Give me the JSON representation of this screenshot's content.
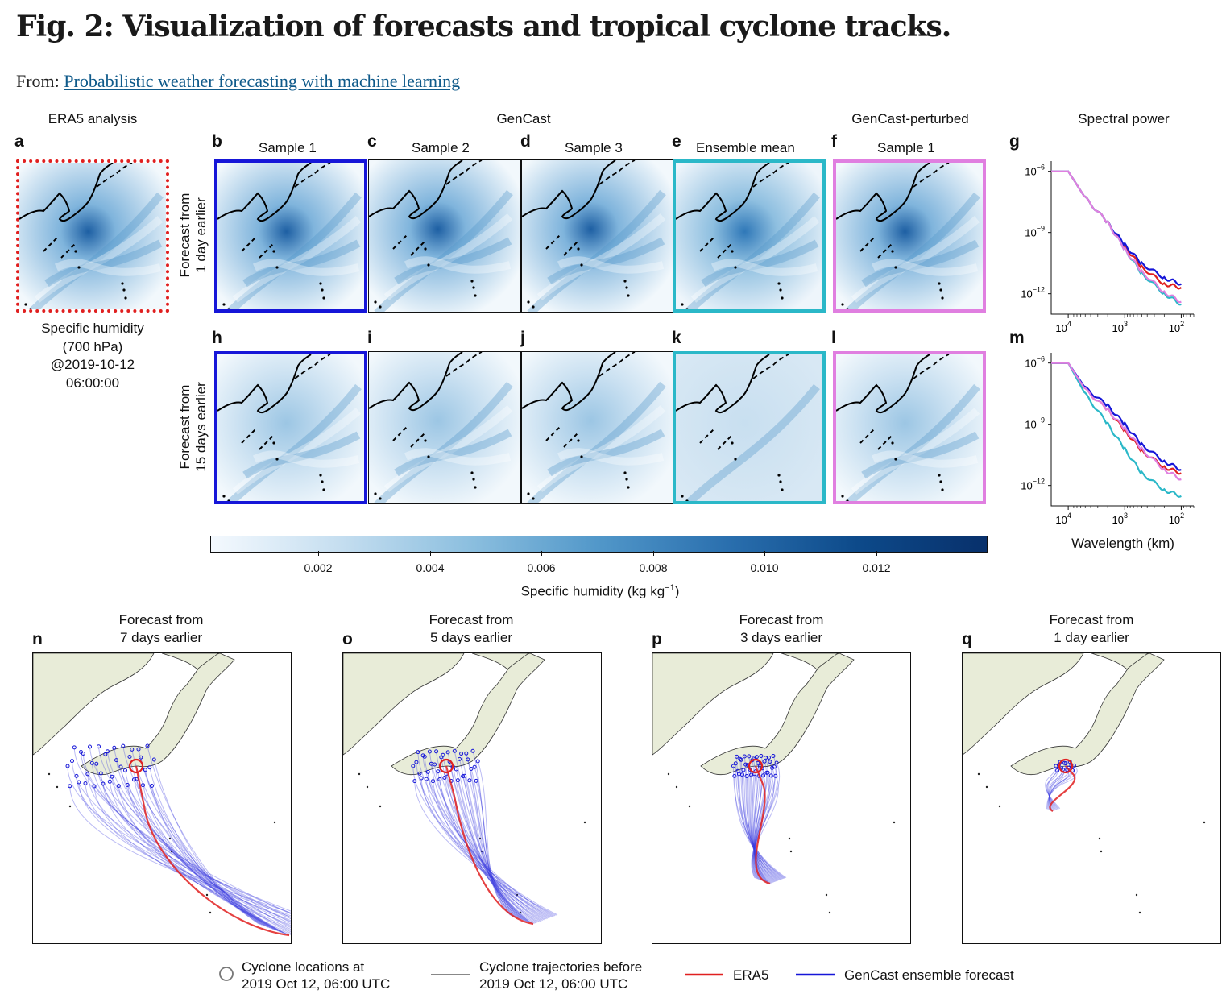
{
  "figure": {
    "title": "Fig. 2: Visualization of forecasts and tropical cyclone tracks.",
    "from_prefix": "From:",
    "from_link": "Probabilistic weather forecasting with machine learning"
  },
  "headers": {
    "era5": "ERA5 analysis",
    "gencast": "GenCast",
    "perturbed": "GenCast-perturbed",
    "spectral": "Spectral power"
  },
  "panel_letters": [
    "a",
    "b",
    "c",
    "d",
    "e",
    "f",
    "g",
    "h",
    "i",
    "j",
    "k",
    "l",
    "m",
    "n",
    "o",
    "p",
    "q"
  ],
  "panel_titles": {
    "b": "Sample 1",
    "c": "Sample 2",
    "d": "Sample 3",
    "e": "Ensemble mean",
    "f": "Sample 1"
  },
  "row_labels": {
    "row1_line1": "Forecast from",
    "row1_line2": "1 day earlier",
    "row2_line1": "Forecast from",
    "row2_line2": "15 days earlier"
  },
  "era5_caption": [
    "Specific humidity",
    "(700 hPa)",
    "@2019-10-12",
    "06:00:00"
  ],
  "colorbar": {
    "ticks": [
      "0.002",
      "0.004",
      "0.006",
      "0.008",
      "0.010",
      "0.012"
    ],
    "label_main": "Specific humidity (kg kg",
    "label_sup": "−1",
    "label_end": ")",
    "colors": [
      "#f4f9fe",
      "#08306b"
    ]
  },
  "spectral": {
    "ytick_base": "10",
    "yticks_exp": [
      "−6",
      "−9",
      "−12"
    ],
    "xtick_base": "10",
    "xticks_exp": [
      "4",
      "3",
      "2"
    ],
    "xlabel": "Wavelength (km)"
  },
  "chart_data": [
    {
      "type": "line",
      "panel": "g",
      "xlabel": "",
      "x_scale": "log (reversed)",
      "y_scale": "log",
      "x": [
        20000,
        10000,
        5000,
        2000,
        1000,
        500,
        200,
        100
      ],
      "series": [
        {
          "color": "#e02020",
          "values": [
            1e-06,
            1e-06,
            5e-08,
            3e-09,
            2e-10,
            2e-11,
            3e-12,
            2e-12
          ]
        },
        {
          "color": "#1616d8",
          "values": [
            1e-06,
            1e-06,
            5e-08,
            3e-09,
            2.5e-10,
            3e-11,
            6e-12,
            3e-12
          ]
        },
        {
          "color": "#2bb8c8",
          "values": [
            1e-06,
            1e-06,
            5e-08,
            3e-09,
            1.5e-10,
            1e-11,
            1e-12,
            3e-13
          ]
        },
        {
          "color": "#e07fe0",
          "values": [
            1e-06,
            1e-06,
            5e-08,
            3e-09,
            1.5e-10,
            1.2e-11,
            1.2e-12,
            4e-13
          ]
        }
      ]
    },
    {
      "type": "line",
      "panel": "m",
      "xlabel": "Wavelength (km)",
      "x_scale": "log (reversed)",
      "y_scale": "log",
      "x": [
        20000,
        10000,
        5000,
        2000,
        1000,
        500,
        200,
        100
      ],
      "series": [
        {
          "color": "#e02020",
          "values": [
            1e-06,
            1e-06,
            5e-08,
            5e-09,
            5e-10,
            5e-11,
            8e-12,
            4e-12
          ]
        },
        {
          "color": "#1616d8",
          "values": [
            1e-06,
            1e-06,
            6e-08,
            8e-09,
            1e-09,
            1e-10,
            1.5e-11,
            6e-12
          ]
        },
        {
          "color": "#2bb8c8",
          "values": [
            1e-06,
            1e-06,
            3e-08,
            1e-09,
            6e-11,
            4e-12,
            6e-13,
            3e-13
          ]
        },
        {
          "color": "#e07fe0",
          "values": [
            1e-06,
            1e-06,
            5e-08,
            5e-09,
            6e-10,
            6e-11,
            6e-12,
            2e-12
          ]
        }
      ]
    }
  ],
  "tracks": {
    "n": [
      "Forecast from",
      "7 days earlier"
    ],
    "o": [
      "Forecast from",
      "5 days earlier"
    ],
    "p": [
      "Forecast from",
      "3 days earlier"
    ],
    "q": [
      "Forecast from",
      "1 day earlier"
    ]
  },
  "legend": {
    "circle": [
      "Cyclone locations at",
      "2019 Oct 12, 06:00 UTC"
    ],
    "traj": [
      "Cyclone trajectories before",
      "2019 Oct 12, 06:00 UTC"
    ],
    "era5": "ERA5",
    "gencast": "GenCast ensemble forecast",
    "colors": {
      "era5": "#e02020",
      "gencast": "#1616d8",
      "traj": "#888888"
    }
  }
}
